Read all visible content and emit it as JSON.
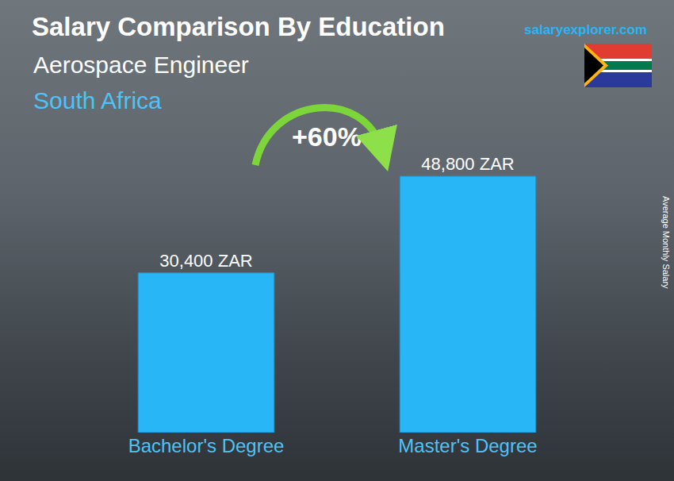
{
  "chart_data": {
    "type": "bar",
    "title": "Salary Comparison By Education",
    "subtitle": "Aerospace Engineer",
    "region": "South Africa",
    "source": "salaryexplorer.com",
    "ylabel": "Average Monthly Salary",
    "annotation": "+60%",
    "categories": [
      "Bachelor's Degree",
      "Master's Degree"
    ],
    "values": [
      30400,
      48800
    ],
    "value_labels": [
      "30,400 ZAR",
      "48,800 ZAR"
    ],
    "color": "#29b6f6",
    "data_labels": true,
    "tick_labels": "x",
    "grid": false
  }
}
